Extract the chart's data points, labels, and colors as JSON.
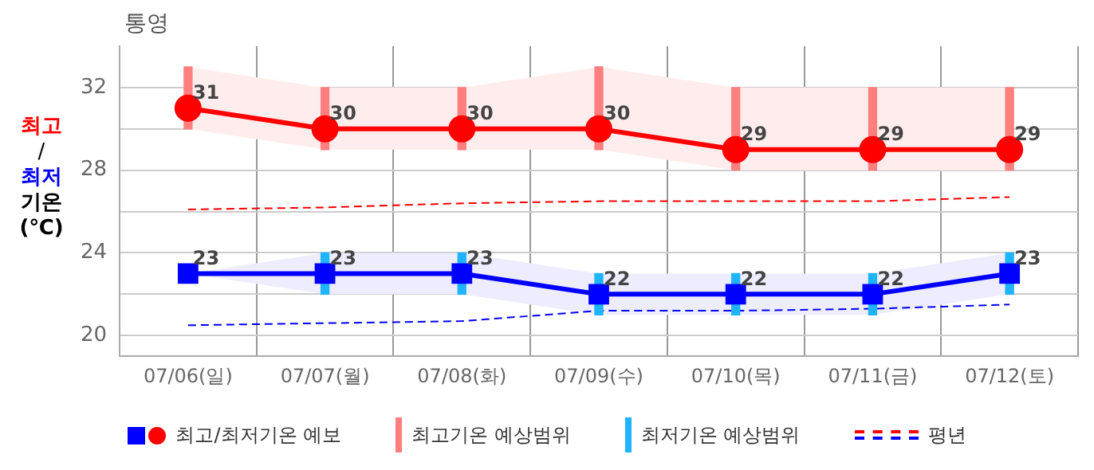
{
  "chart_data": {
    "type": "line",
    "title": "통영",
    "ylabel": "최고\n/\n최저\n기온\n(℃)",
    "categories": [
      "07/06(일)",
      "07/07(월)",
      "07/08(화)",
      "07/09(수)",
      "07/10(목)",
      "07/11(금)",
      "07/12(토)"
    ],
    "series": [
      {
        "name": "최고/최저기온 예보",
        "color": "#ff0000",
        "marker": "circle",
        "values": [
          31,
          30,
          30,
          30,
          29,
          29,
          29
        ],
        "value_labels": [
          "31",
          "30",
          "30",
          "30",
          "29",
          "29",
          "29"
        ],
        "lower": [
          30,
          29,
          29,
          29,
          28,
          28,
          28
        ],
        "upper": [
          33,
          32,
          32,
          33,
          32,
          32,
          32
        ]
      },
      {
        "color": "#0000ff",
        "marker": "square",
        "values": [
          23,
          23,
          23,
          22,
          22,
          22,
          23
        ],
        "value_labels": [
          "23",
          "23",
          "23",
          "22",
          "22",
          "22",
          "23"
        ],
        "lower": [
          23,
          22,
          22,
          21,
          21,
          21,
          22
        ],
        "upper": [
          23,
          24,
          24,
          23,
          23,
          23,
          24
        ]
      },
      {
        "name": "최고기온 예상범위",
        "type": "bar",
        "color": "#ff7f7f",
        "base": [
          30,
          29,
          29,
          29,
          28,
          28,
          28
        ],
        "values": [
          3,
          3,
          3,
          4,
          4,
          4,
          4
        ]
      },
      {
        "name": "최저기온 예상범위",
        "type": "bar",
        "color": "#1eb4ff",
        "base": [
          null,
          22,
          22,
          21,
          21,
          21,
          22
        ],
        "values": [
          null,
          2,
          2,
          2,
          2,
          2,
          2
        ]
      },
      {
        "name": "평년",
        "color": "#ff0000",
        "marker": "none",
        "line_style": "dashed",
        "values": [
          26.1,
          26.2,
          26.4,
          26.5,
          26.5,
          26.5,
          26.7
        ]
      },
      {
        "color": "#0000ff",
        "marker": "none",
        "line_style": "dashed",
        "values": [
          20.5,
          20.6,
          20.7,
          21.2,
          21.2,
          21.3,
          21.5
        ]
      }
    ],
    "ylim": [
      19,
      34
    ],
    "yticks": [
      20,
      {
        "value": 22,
        "label": null
      },
      24,
      {
        "value": 26,
        "label": null
      },
      28,
      {
        "value": 30,
        "label": null
      },
      32
    ],
    "grid": true,
    "legend": "bottom"
  }
}
